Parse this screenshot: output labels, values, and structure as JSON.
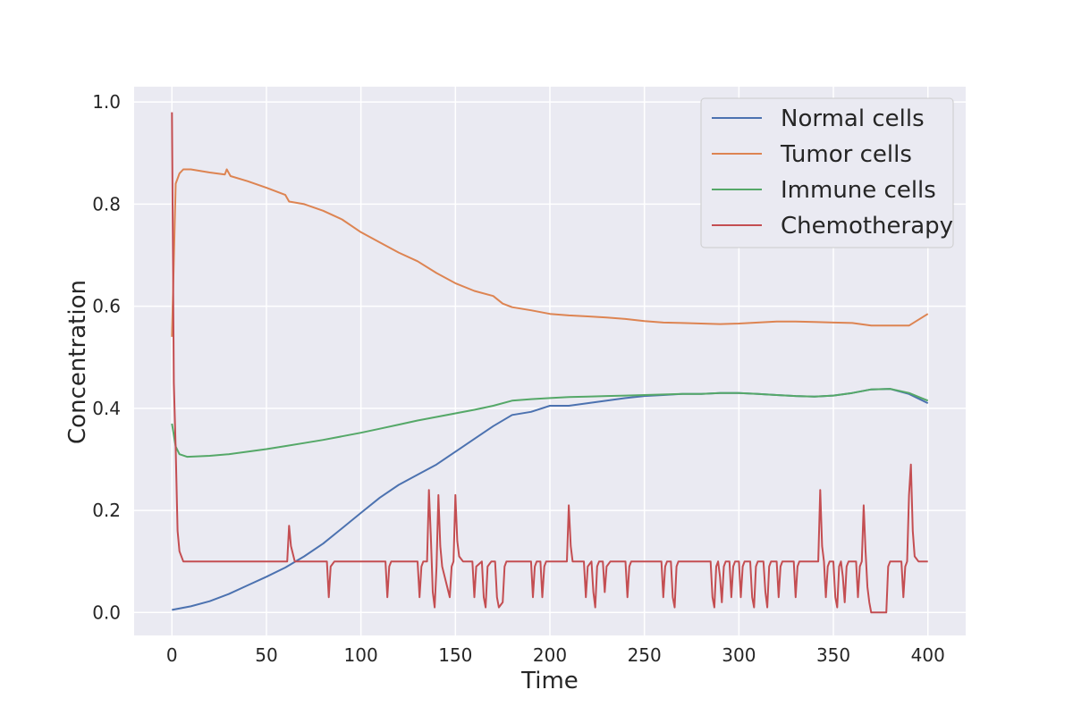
{
  "chart_data": {
    "type": "line",
    "title": "",
    "xlabel": "Time",
    "ylabel": "Concentration",
    "xlim": [
      -20,
      420
    ],
    "ylim": [
      -0.045,
      1.03
    ],
    "x_ticks": [
      0,
      50,
      100,
      150,
      200,
      250,
      300,
      350,
      400
    ],
    "x_tick_labels": [
      "0",
      "50",
      "100",
      "150",
      "200",
      "250",
      "300",
      "350",
      "400"
    ],
    "y_ticks": [
      0.0,
      0.2,
      0.4,
      0.6,
      0.8,
      1.0
    ],
    "y_tick_labels": [
      "0.0",
      "0.2",
      "0.4",
      "0.6",
      "0.8",
      "1.0"
    ],
    "grid": true,
    "legend_position": "top-right",
    "series": [
      {
        "name": "Normal cells",
        "color": "#4c72b0",
        "points": [
          [
            0,
            0.005
          ],
          [
            10,
            0.012
          ],
          [
            20,
            0.022
          ],
          [
            30,
            0.036
          ],
          [
            40,
            0.053
          ],
          [
            50,
            0.07
          ],
          [
            60,
            0.088
          ],
          [
            70,
            0.11
          ],
          [
            80,
            0.135
          ],
          [
            90,
            0.165
          ],
          [
            100,
            0.195
          ],
          [
            110,
            0.225
          ],
          [
            120,
            0.25
          ],
          [
            130,
            0.27
          ],
          [
            140,
            0.29
          ],
          [
            150,
            0.315
          ],
          [
            160,
            0.34
          ],
          [
            170,
            0.365
          ],
          [
            180,
            0.387
          ],
          [
            190,
            0.393
          ],
          [
            200,
            0.405
          ],
          [
            210,
            0.405
          ],
          [
            220,
            0.41
          ],
          [
            230,
            0.415
          ],
          [
            240,
            0.42
          ],
          [
            250,
            0.424
          ],
          [
            260,
            0.426
          ],
          [
            270,
            0.428
          ],
          [
            280,
            0.428
          ],
          [
            290,
            0.43
          ],
          [
            300,
            0.43
          ],
          [
            310,
            0.428
          ],
          [
            320,
            0.426
          ],
          [
            330,
            0.424
          ],
          [
            340,
            0.423
          ],
          [
            350,
            0.425
          ],
          [
            360,
            0.43
          ],
          [
            370,
            0.437
          ],
          [
            380,
            0.438
          ],
          [
            390,
            0.428
          ],
          [
            400,
            0.41
          ]
        ]
      },
      {
        "name": "Tumor cells",
        "color": "#dd8452",
        "points": [
          [
            0,
            0.54
          ],
          [
            2,
            0.84
          ],
          [
            4,
            0.86
          ],
          [
            6,
            0.868
          ],
          [
            10,
            0.868
          ],
          [
            20,
            0.862
          ],
          [
            28,
            0.858
          ],
          [
            29,
            0.868
          ],
          [
            31,
            0.855
          ],
          [
            40,
            0.845
          ],
          [
            50,
            0.832
          ],
          [
            60,
            0.818
          ],
          [
            62,
            0.805
          ],
          [
            70,
            0.8
          ],
          [
            80,
            0.787
          ],
          [
            90,
            0.77
          ],
          [
            100,
            0.745
          ],
          [
            110,
            0.725
          ],
          [
            120,
            0.705
          ],
          [
            130,
            0.688
          ],
          [
            140,
            0.665
          ],
          [
            150,
            0.645
          ],
          [
            160,
            0.63
          ],
          [
            170,
            0.62
          ],
          [
            175,
            0.605
          ],
          [
            180,
            0.598
          ],
          [
            190,
            0.592
          ],
          [
            200,
            0.585
          ],
          [
            210,
            0.582
          ],
          [
            220,
            0.58
          ],
          [
            230,
            0.578
          ],
          [
            240,
            0.575
          ],
          [
            250,
            0.571
          ],
          [
            260,
            0.568
          ],
          [
            270,
            0.567
          ],
          [
            280,
            0.566
          ],
          [
            290,
            0.565
          ],
          [
            300,
            0.566
          ],
          [
            310,
            0.568
          ],
          [
            320,
            0.57
          ],
          [
            330,
            0.57
          ],
          [
            340,
            0.569
          ],
          [
            350,
            0.568
          ],
          [
            360,
            0.567
          ],
          [
            370,
            0.562
          ],
          [
            380,
            0.562
          ],
          [
            390,
            0.562
          ],
          [
            400,
            0.585
          ]
        ]
      },
      {
        "name": "Immune cells",
        "color": "#55a868",
        "points": [
          [
            0,
            0.37
          ],
          [
            2,
            0.325
          ],
          [
            4,
            0.31
          ],
          [
            8,
            0.305
          ],
          [
            20,
            0.307
          ],
          [
            30,
            0.31
          ],
          [
            40,
            0.315
          ],
          [
            50,
            0.32
          ],
          [
            60,
            0.326
          ],
          [
            70,
            0.332
          ],
          [
            80,
            0.338
          ],
          [
            90,
            0.345
          ],
          [
            100,
            0.352
          ],
          [
            110,
            0.36
          ],
          [
            120,
            0.368
          ],
          [
            130,
            0.376
          ],
          [
            140,
            0.383
          ],
          [
            150,
            0.39
          ],
          [
            160,
            0.397
          ],
          [
            170,
            0.405
          ],
          [
            180,
            0.415
          ],
          [
            190,
            0.418
          ],
          [
            200,
            0.42
          ],
          [
            210,
            0.422
          ],
          [
            220,
            0.423
          ],
          [
            230,
            0.424
          ],
          [
            240,
            0.425
          ],
          [
            250,
            0.426
          ],
          [
            260,
            0.427
          ],
          [
            270,
            0.428
          ],
          [
            280,
            0.428
          ],
          [
            290,
            0.43
          ],
          [
            300,
            0.43
          ],
          [
            310,
            0.428
          ],
          [
            320,
            0.426
          ],
          [
            330,
            0.424
          ],
          [
            340,
            0.423
          ],
          [
            350,
            0.425
          ],
          [
            360,
            0.43
          ],
          [
            370,
            0.437
          ],
          [
            380,
            0.438
          ],
          [
            390,
            0.43
          ],
          [
            400,
            0.415
          ]
        ]
      },
      {
        "name": "Chemotherapy",
        "color": "#c44e52",
        "points": [
          [
            0,
            0.98
          ],
          [
            1,
            0.45
          ],
          [
            2,
            0.32
          ],
          [
            3,
            0.16
          ],
          [
            4,
            0.12
          ],
          [
            6,
            0.1
          ],
          [
            61,
            0.1
          ],
          [
            62,
            0.17
          ],
          [
            63,
            0.13
          ],
          [
            65,
            0.1
          ],
          [
            82,
            0.1
          ],
          [
            83,
            0.03
          ],
          [
            84,
            0.09
          ],
          [
            86,
            0.1
          ],
          [
            113,
            0.1
          ],
          [
            114,
            0.03
          ],
          [
            115,
            0.09
          ],
          [
            116,
            0.1
          ],
          [
            130,
            0.1
          ],
          [
            131,
            0.03
          ],
          [
            132,
            0.09
          ],
          [
            133,
            0.1
          ],
          [
            135,
            0.1
          ],
          [
            136,
            0.24
          ],
          [
            137,
            0.15
          ],
          [
            138,
            0.04
          ],
          [
            139,
            0.01
          ],
          [
            140,
            0.09
          ],
          [
            141,
            0.23
          ],
          [
            142,
            0.13
          ],
          [
            143,
            0.09
          ],
          [
            147,
            0.03
          ],
          [
            148,
            0.09
          ],
          [
            149,
            0.1
          ],
          [
            150,
            0.23
          ],
          [
            151,
            0.14
          ],
          [
            152,
            0.11
          ],
          [
            154,
            0.1
          ],
          [
            159,
            0.1
          ],
          [
            160,
            0.03
          ],
          [
            161,
            0.09
          ],
          [
            164,
            0.1
          ],
          [
            165,
            0.03
          ],
          [
            166,
            0.01
          ],
          [
            167,
            0.09
          ],
          [
            169,
            0.1
          ],
          [
            171,
            0.1
          ],
          [
            172,
            0.03
          ],
          [
            173,
            0.01
          ],
          [
            175,
            0.02
          ],
          [
            176,
            0.09
          ],
          [
            177,
            0.1
          ],
          [
            190,
            0.1
          ],
          [
            191,
            0.03
          ],
          [
            192,
            0.09
          ],
          [
            193,
            0.1
          ],
          [
            195,
            0.1
          ],
          [
            196,
            0.03
          ],
          [
            197,
            0.09
          ],
          [
            198,
            0.1
          ],
          [
            209,
            0.1
          ],
          [
            210,
            0.21
          ],
          [
            211,
            0.13
          ],
          [
            212,
            0.1
          ],
          [
            218,
            0.1
          ],
          [
            219,
            0.03
          ],
          [
            220,
            0.09
          ],
          [
            222,
            0.1
          ],
          [
            223,
            0.04
          ],
          [
            224,
            0.01
          ],
          [
            225,
            0.09
          ],
          [
            226,
            0.1
          ],
          [
            228,
            0.1
          ],
          [
            229,
            0.04
          ],
          [
            230,
            0.09
          ],
          [
            232,
            0.1
          ],
          [
            240,
            0.1
          ],
          [
            241,
            0.03
          ],
          [
            242,
            0.09
          ],
          [
            243,
            0.1
          ],
          [
            259,
            0.1
          ],
          [
            260,
            0.03
          ],
          [
            261,
            0.09
          ],
          [
            262,
            0.1
          ],
          [
            264,
            0.1
          ],
          [
            265,
            0.03
          ],
          [
            266,
            0.01
          ],
          [
            267,
            0.09
          ],
          [
            268,
            0.1
          ],
          [
            285,
            0.1
          ],
          [
            286,
            0.03
          ],
          [
            287,
            0.01
          ],
          [
            288,
            0.09
          ],
          [
            289,
            0.1
          ],
          [
            290,
            0.07
          ],
          [
            291,
            0.02
          ],
          [
            292,
            0.09
          ],
          [
            293,
            0.1
          ],
          [
            295,
            0.1
          ],
          [
            296,
            0.03
          ],
          [
            297,
            0.09
          ],
          [
            298,
            0.1
          ],
          [
            300,
            0.1
          ],
          [
            301,
            0.03
          ],
          [
            302,
            0.09
          ],
          [
            303,
            0.1
          ],
          [
            306,
            0.1
          ],
          [
            307,
            0.03
          ],
          [
            308,
            0.01
          ],
          [
            309,
            0.09
          ],
          [
            310,
            0.1
          ],
          [
            313,
            0.1
          ],
          [
            314,
            0.04
          ],
          [
            315,
            0.01
          ],
          [
            316,
            0.09
          ],
          [
            317,
            0.1
          ],
          [
            320,
            0.1
          ],
          [
            321,
            0.03
          ],
          [
            322,
            0.09
          ],
          [
            323,
            0.1
          ],
          [
            329,
            0.1
          ],
          [
            330,
            0.03
          ],
          [
            331,
            0.09
          ],
          [
            332,
            0.1
          ],
          [
            342,
            0.1
          ],
          [
            343,
            0.24
          ],
          [
            344,
            0.13
          ],
          [
            345,
            0.1
          ],
          [
            346,
            0.03
          ],
          [
            347,
            0.09
          ],
          [
            348,
            0.1
          ],
          [
            350,
            0.1
          ],
          [
            351,
            0.03
          ],
          [
            352,
            0.01
          ],
          [
            353,
            0.09
          ],
          [
            354,
            0.1
          ],
          [
            355,
            0.07
          ],
          [
            356,
            0.02
          ],
          [
            357,
            0.09
          ],
          [
            358,
            0.1
          ],
          [
            362,
            0.1
          ],
          [
            363,
            0.03
          ],
          [
            364,
            0.09
          ],
          [
            365,
            0.1
          ],
          [
            366,
            0.21
          ],
          [
            367,
            0.12
          ],
          [
            368,
            0.05
          ],
          [
            369,
            0.02
          ],
          [
            370,
            0.0
          ],
          [
            378,
            0.0
          ],
          [
            379,
            0.09
          ],
          [
            380,
            0.1
          ],
          [
            386,
            0.1
          ],
          [
            387,
            0.03
          ],
          [
            388,
            0.09
          ],
          [
            389,
            0.1
          ],
          [
            390,
            0.23
          ],
          [
            391,
            0.29
          ],
          [
            392,
            0.16
          ],
          [
            393,
            0.11
          ],
          [
            395,
            0.1
          ],
          [
            400,
            0.1
          ]
        ]
      }
    ]
  }
}
